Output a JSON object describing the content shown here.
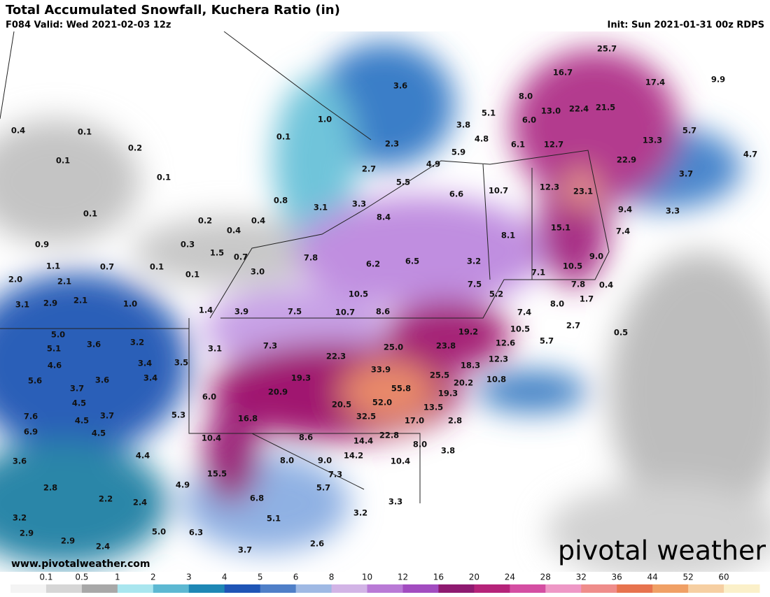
{
  "header": {
    "title": "Total Accumulated Snowfall, Kuchera Ratio (in)",
    "valid": "F084 Valid: Wed 2021-02-03 12z",
    "init": "Init: Sun 2021-01-31 00z RDPS"
  },
  "map": {
    "labels": [
      "25.7",
      "16.7",
      "17.4",
      "9.9",
      "3.6",
      "8.0",
      "13.0",
      "22.4",
      "21.5",
      "5.1",
      "6.0",
      "1.0",
      "3.8",
      "5.7",
      "0.4",
      "0.1",
      "0.1",
      "4.8",
      "13.3",
      "2.3",
      "6.1",
      "12.7",
      "0.2",
      "5.9",
      "4.7",
      "0.1",
      "22.9",
      "4.9",
      "2.7",
      "3.7",
      "0.1",
      "5.5",
      "10.7",
      "12.3",
      "23.1",
      "6.6",
      "0.8",
      "3.1",
      "3.3",
      "9.4",
      "3.3",
      "0.1",
      "8.4",
      "0.2",
      "0.4",
      "15.1",
      "7.4",
      "0.4",
      "8.1",
      "0.9",
      "0.3",
      "1.5",
      "0.7",
      "7.8",
      "9.0",
      "6.2",
      "6.5",
      "3.2",
      "1.1",
      "0.7",
      "0.1",
      "10.5",
      "3.0",
      "0.1",
      "7.1",
      "2.0",
      "2.1",
      "7.5",
      "7.8",
      "0.4",
      "10.5",
      "5.2",
      "3.1",
      "2.9",
      "2.1",
      "1.0",
      "8.0",
      "1.7",
      "1.4",
      "3.9",
      "7.5",
      "10.7",
      "8.6",
      "7.4",
      "19.2",
      "10.5",
      "2.7",
      "0.5",
      "5.0",
      "3.6",
      "3.2",
      "25.0",
      "23.8",
      "12.6",
      "5.7",
      "5.1",
      "7.3",
      "3.1",
      "22.3",
      "12.3",
      "18.3",
      "4.6",
      "3.4",
      "3.5",
      "33.9",
      "25.5",
      "10.8",
      "5.6",
      "3.6",
      "3.4",
      "19.3",
      "20.2",
      "55.8",
      "3.7",
      "20.9",
      "19.3",
      "6.0",
      "52.0",
      "4.5",
      "20.5",
      "13.5",
      "7.6",
      "3.7",
      "5.3",
      "16.8",
      "32.5",
      "17.0",
      "4.5",
      "2.8",
      "6.9",
      "4.5",
      "10.4",
      "8.6",
      "22.8",
      "14.4",
      "8.0",
      "4.4",
      "14.2",
      "3.6",
      "8.0",
      "9.0",
      "10.4",
      "3.8",
      "2.8",
      "15.5",
      "7.3",
      "4.9",
      "5.7",
      "2.2",
      "2.4",
      "6.8",
      "3.3",
      "3.2",
      "5.1",
      "3.2",
      "2.9",
      "5.0",
      "6.3",
      "2.9",
      "2.4",
      "2.6",
      "3.7"
    ],
    "website": "www.pivotalweather.com",
    "logo": "pivotal weather"
  },
  "legend": {
    "levels": [
      "0.1",
      "0.5",
      "1",
      "2",
      "3",
      "4",
      "5",
      "6",
      "8",
      "10",
      "12",
      "16",
      "20",
      "24",
      "28",
      "32",
      "36",
      "44",
      "52",
      "60"
    ],
    "colors": [
      "#f4f4f4",
      "#d6d6d6",
      "#a8a8a8",
      "#a9e6ef",
      "#5cb8d2",
      "#1e87b5",
      "#1f55b6",
      "#4f7fc8",
      "#9fb9e4",
      "#d2b4e6",
      "#b97ad6",
      "#a24cc0",
      "#8e1a70",
      "#b52379",
      "#d44ea2",
      "#ee98c6",
      "#ef8d8b",
      "#e7734e",
      "#f0a065",
      "#f6cfa2",
      "#fbf0c9"
    ]
  }
}
